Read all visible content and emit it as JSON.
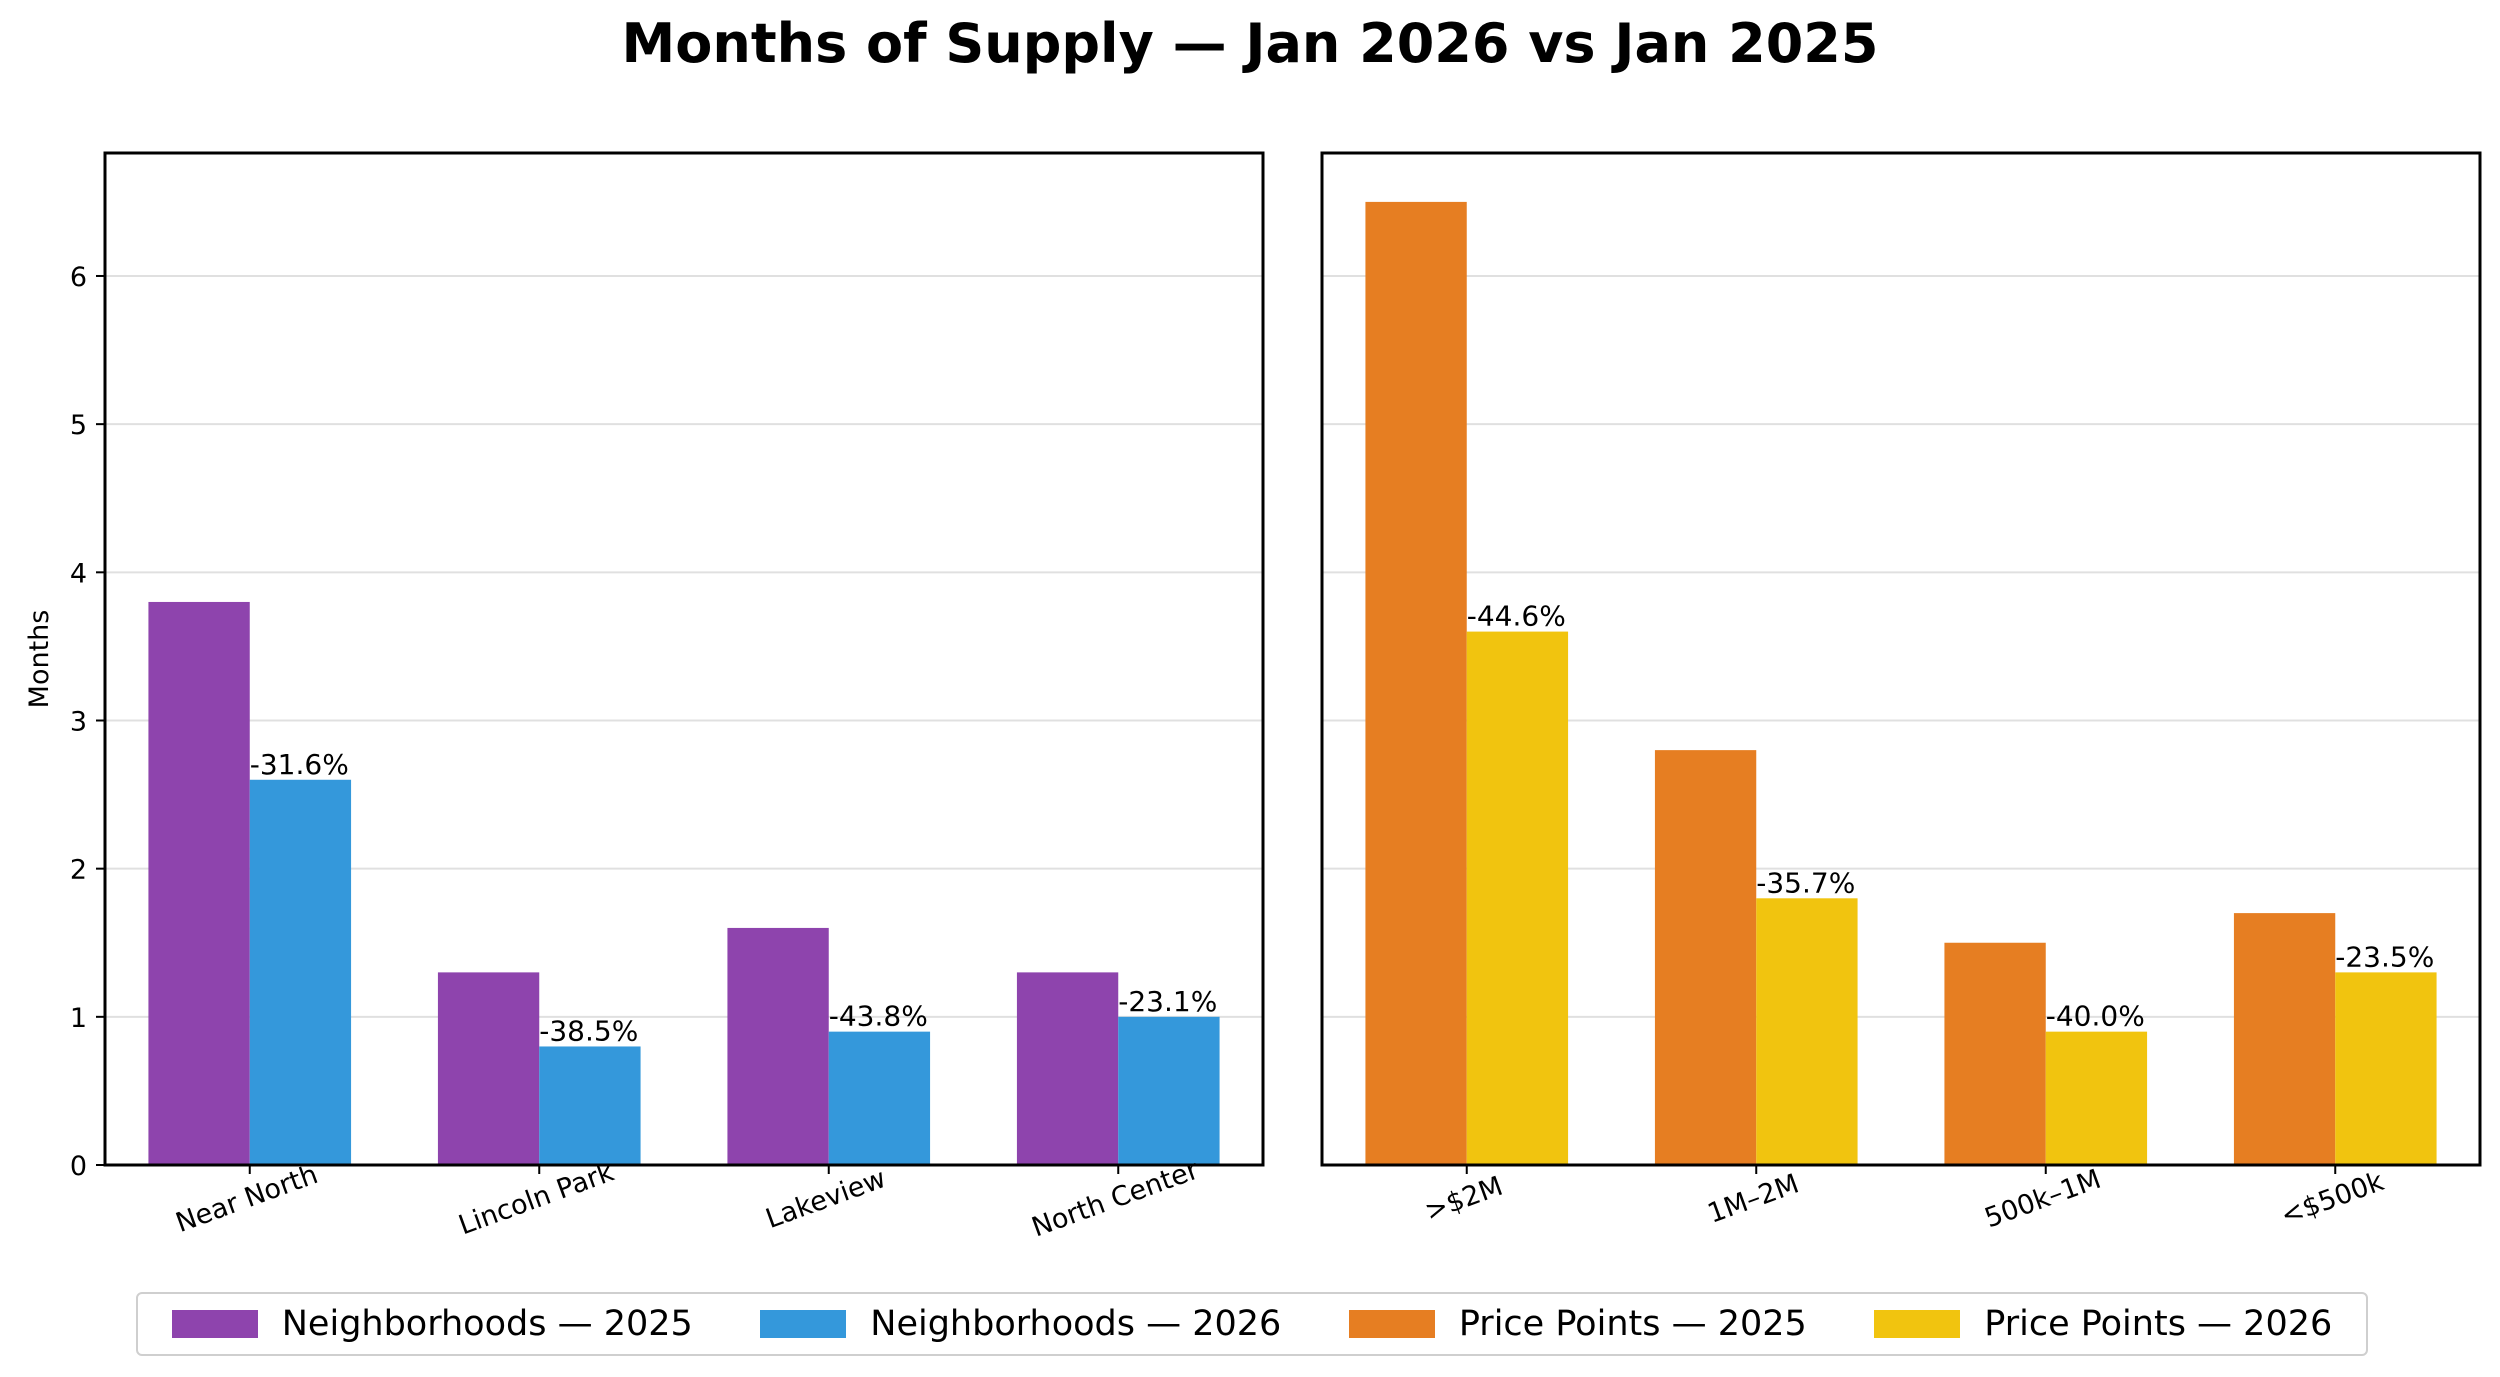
{
  "title": "Months of Supply — Jan 2026 vs Jan 2025",
  "chart_data": [
    {
      "type": "bar",
      "panel": "left",
      "categories": [
        "Near North",
        "Lincoln Park",
        "Lakeview",
        "North Center"
      ],
      "series": [
        {
          "name": "Neighborhoods — 2025",
          "color": "#8e44ad",
          "values": [
            3.8,
            1.3,
            1.6,
            1.3
          ]
        },
        {
          "name": "Neighborhoods — 2026",
          "color": "#3498db",
          "values": [
            2.6,
            0.8,
            0.9,
            1.0
          ]
        }
      ],
      "data_labels": [
        "-31.6%",
        "-38.5%",
        "-43.8%",
        "-23.1%"
      ],
      "ylabel": "Months",
      "yticks": [
        "0",
        "1",
        "2",
        "3",
        "4",
        "5",
        "6"
      ],
      "ylim": [
        0,
        6.83
      ],
      "grid": true
    },
    {
      "type": "bar",
      "panel": "right",
      "categories": [
        ">$2M",
        "1M–2M",
        "500k–1M",
        "<$500k"
      ],
      "series": [
        {
          "name": "Price Points — 2025",
          "color": "#e67e22",
          "values": [
            6.5,
            2.8,
            1.5,
            1.7
          ]
        },
        {
          "name": "Price Points — 2026",
          "color": "#f1c40f",
          "values": [
            3.6,
            1.8,
            0.9,
            1.3
          ]
        }
      ],
      "data_labels": [
        "-44.6%",
        "-35.7%",
        "-40.0%",
        "-23.5%"
      ],
      "ylim": [
        0,
        6.83
      ],
      "grid": true
    }
  ],
  "legend": {
    "position": "bottom",
    "items": [
      {
        "label": "Neighborhoods — 2025",
        "color": "#8e44ad"
      },
      {
        "label": "Neighborhoods — 2026",
        "color": "#3498db"
      },
      {
        "label": "Price Points — 2025",
        "color": "#e67e22"
      },
      {
        "label": "Price Points — 2026",
        "color": "#f1c40f"
      }
    ]
  }
}
